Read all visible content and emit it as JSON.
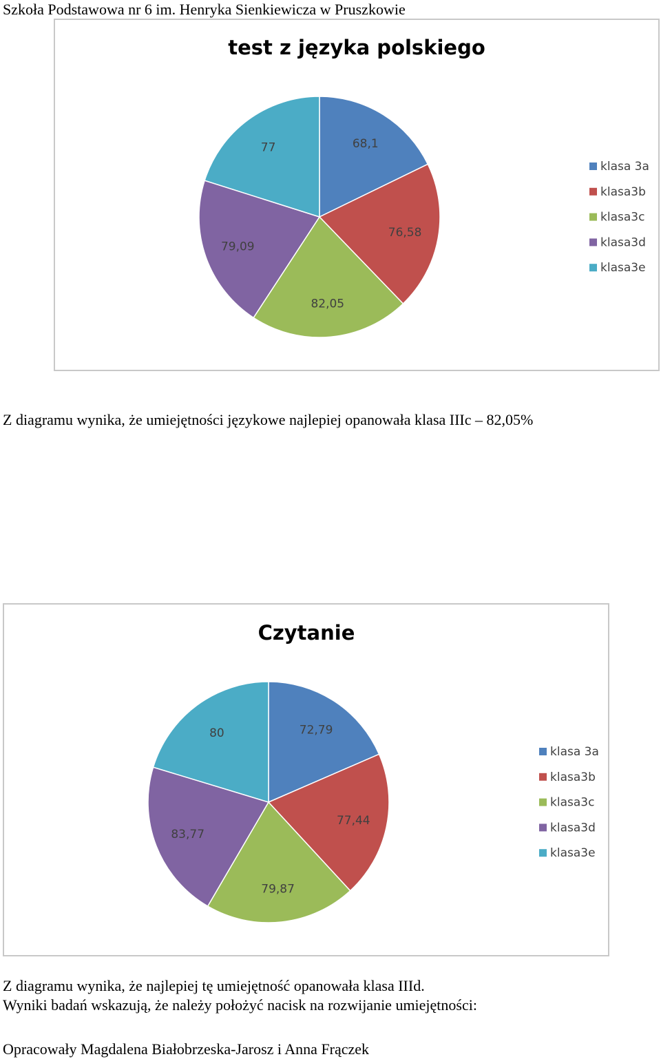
{
  "header": {
    "school": "Szkoła Podstawowa nr 6 im. Henryka Sienkiewicza w Pruszkowie"
  },
  "text": {
    "conclusion1": "Z diagramu wynika, że umiejętności językowe najlepiej opanowała klasa IIIc – 82,05%",
    "conclusion2": "Z diagramu  wynika, że najlepiej tę umiejętność opanowała klasa IIId.",
    "conclusion3": "Wyniki badań wskazują, że należy położyć nacisk na rozwijanie umiejętności:",
    "authors": "Opracowały Magdalena Białobrzeska-Jarosz i Anna Frączek"
  },
  "colors": [
    "#4F81BD",
    "#C0504D",
    "#9BBB59",
    "#8064A2",
    "#4BACC6"
  ],
  "chart_data": [
    {
      "type": "pie",
      "title": "test z języka polskiego",
      "categories": [
        "klasa 3a",
        "klasa3b",
        "klasa3c",
        "klasa3d",
        "klasa3e"
      ],
      "values": [
        68.1,
        76.58,
        82.05,
        79.09,
        77
      ],
      "labels": [
        "68,1",
        "76,58",
        "82,05",
        "79,09",
        "77"
      ],
      "legend": "right"
    },
    {
      "type": "pie",
      "title": "Czytanie",
      "categories": [
        "klasa 3a",
        "klasa3b",
        "klasa3c",
        "klasa3d",
        "klasa3e"
      ],
      "values": [
        72.79,
        77.44,
        79.87,
        83.77,
        80
      ],
      "labels": [
        "72,79",
        "77,44",
        "79,87",
        "83,77",
        "80"
      ],
      "legend": "right"
    }
  ]
}
